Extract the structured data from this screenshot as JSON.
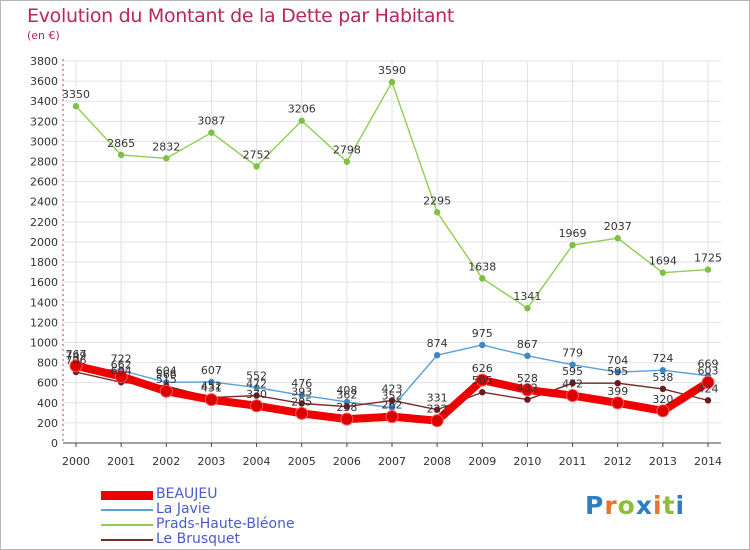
{
  "title": "Evolution du Montant de la Dette par Habitant",
  "subtitle": "(en €)",
  "logo": {
    "letters": [
      "P",
      "r",
      "o",
      "x",
      "i",
      "t",
      "i"
    ],
    "colors": [
      "#2c7fc0",
      "#e8732a",
      "#8fbf3a",
      "#2c7fc0",
      "#e8732a",
      "#8fbf3a",
      "#2c7fc0"
    ]
  },
  "chart_data": {
    "type": "line",
    "title": "Evolution du Montant de la Dette par Habitant",
    "subtitle": "(en €)",
    "ylim": [
      0,
      3800
    ],
    "y_ticks": [
      0,
      200,
      400,
      600,
      800,
      1000,
      1200,
      1400,
      1600,
      1800,
      2000,
      2200,
      2400,
      2600,
      2800,
      3000,
      3200,
      3400,
      3600,
      3800
    ],
    "categories": [
      "2000",
      "2001",
      "2002",
      "2003",
      "2004",
      "2005",
      "2006",
      "2007",
      "2008",
      "2009",
      "2010",
      "2011",
      "2012",
      "2013",
      "2014"
    ],
    "series": [
      {
        "name": "Prads-Haute-Bléone",
        "color": "#8fce50",
        "marker": "#7dc043",
        "values": [
          3350,
          2865,
          2832,
          3087,
          2752,
          3206,
          2798,
          3590,
          2295,
          1638,
          1341,
          1969,
          2037,
          1694,
          1725
        ],
        "labels": [
          "3350",
          "2865",
          "2832",
          "3087",
          "2752",
          "3206",
          "2798",
          "3590",
          "2295",
          "1638",
          "1341",
          "1969",
          "2037",
          "1694",
          "1725"
        ]
      },
      {
        "name": "La Javie",
        "color": "#5b9fd8",
        "marker": "#3d86c8",
        "values": [
          749,
          722,
          604,
          607,
          552,
          476,
          408,
          352,
          874,
          975,
          867,
          779,
          704,
          724,
          669
        ],
        "labels": [
          "749",
          "722",
          "604",
          "607",
          "552",
          "476",
          "408",
          "352",
          "874",
          "975",
          "867",
          "779",
          "704",
          "724",
          "669"
        ]
      },
      {
        "name": "Le Brusquet",
        "color": "#7a2a2a",
        "marker": "#6a1c1c",
        "values": [
          706,
          604,
          566,
          452,
          472,
          393,
          362,
          423,
          331,
          505,
          432,
          595,
          595,
          538,
          424
        ],
        "labels": [
          "706",
          "604",
          "566",
          "452",
          "472",
          "393",
          "362",
          "423",
          "331",
          "505",
          "432",
          "595",
          "595",
          "538",
          "424"
        ]
      },
      {
        "name": "BEAUJEU",
        "color": "#ee0000",
        "marker": "#dd0000",
        "values": [
          767,
          662,
          515,
          431,
          370,
          295,
          238,
          262,
          222,
          626,
          528,
          472,
          399,
          320,
          603
        ],
        "labels": [
          "767",
          "662",
          "515",
          "431",
          "370",
          "295",
          "238",
          "262",
          "222",
          "626",
          "528",
          "472",
          "399",
          "320",
          "603"
        ]
      }
    ],
    "legend": [
      "BEAUJEU",
      "La Javie",
      "Prads-Haute-Bléone",
      "Le Brusquet"
    ]
  }
}
